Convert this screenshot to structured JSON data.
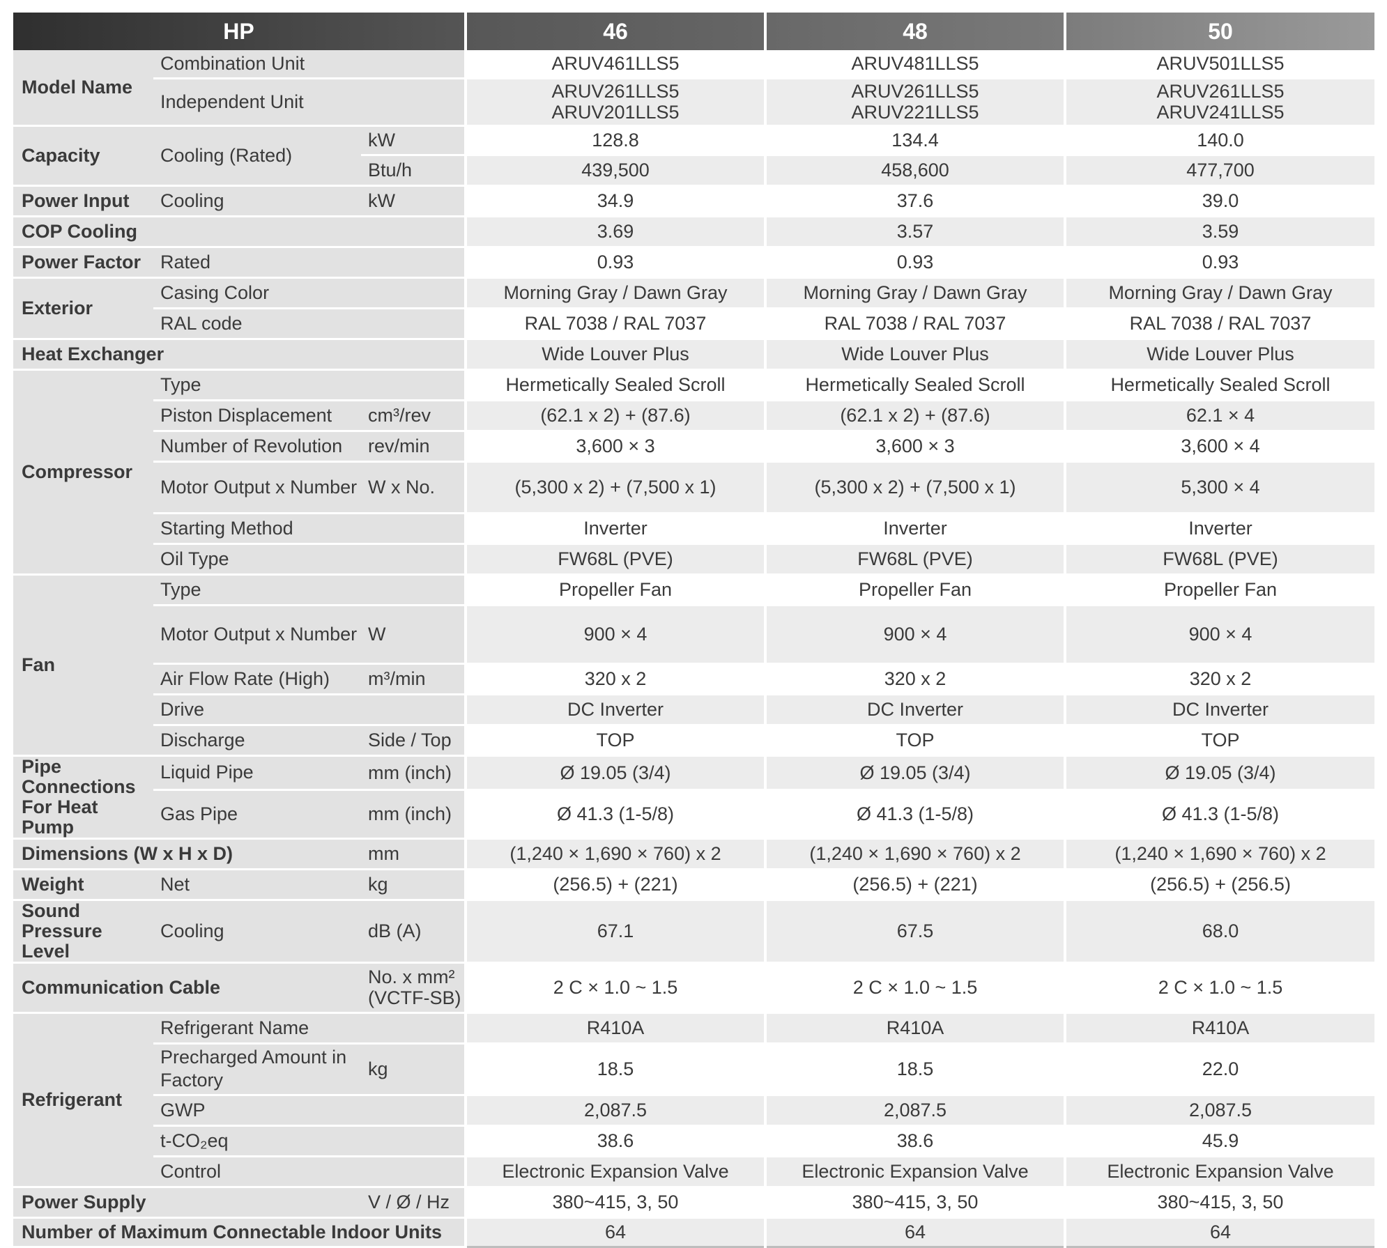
{
  "header": {
    "hp_label": "HP",
    "models": [
      "46",
      "48",
      "50"
    ]
  },
  "rows": [
    {
      "cat": "Model Name",
      "catspan": 2,
      "sub": "Combination Unit",
      "unit": "",
      "vals": [
        "ARUV461LLS5",
        "ARUV481LLS5",
        "ARUV501LLS5"
      ],
      "h": 40
    },
    {
      "sub": "Independent Unit",
      "unit": "",
      "vals": [
        "ARUV261LLS5\nARUV201LLS5",
        "ARUV261LLS5\nARUV221LLS5",
        "ARUV261LLS5\nARUV241LLS5"
      ],
      "h": 68
    },
    {
      "cat": "Capacity",
      "catspan": 2,
      "sub": "Cooling (Rated)",
      "subspan": 2,
      "unit": "kW",
      "vals": [
        "128.8",
        "134.4",
        "140.0"
      ],
      "h": 42
    },
    {
      "unit": "Btu/h",
      "vals": [
        "439,500",
        "458,600",
        "477,700"
      ],
      "h": 44
    },
    {
      "cat": "Power Input",
      "sub": "Cooling",
      "unit": "kW",
      "vals": [
        "34.9",
        "37.6",
        "39.0"
      ],
      "h": 44
    },
    {
      "cat": "COP Cooling",
      "catcols": 3,
      "vals": [
        "3.69",
        "3.57",
        "3.59"
      ],
      "h": 44
    },
    {
      "cat": "Power Factor",
      "sub": "Rated",
      "unit": "",
      "vals": [
        "0.93",
        "0.93",
        "0.93"
      ],
      "h": 44
    },
    {
      "cat": "Exterior",
      "catspan": 2,
      "sub": "Casing Color",
      "unit": "",
      "vals": [
        "Morning Gray / Dawn Gray",
        "Morning Gray / Dawn Gray",
        "Morning Gray / Dawn Gray"
      ],
      "h": 44
    },
    {
      "sub": "RAL code",
      "unit": "",
      "vals": [
        "RAL 7038 / RAL 7037",
        "RAL 7038 / RAL 7037",
        "RAL 7038 / RAL 7037"
      ],
      "h": 44
    },
    {
      "cat": "Heat Exchanger",
      "catcols": 3,
      "vals": [
        "Wide Louver Plus",
        "Wide Louver Plus",
        "Wide Louver Plus"
      ],
      "h": 44
    },
    {
      "cat": "Compressor",
      "catspan": 6,
      "sub": "Type",
      "unit": "",
      "vals": [
        "Hermetically Sealed Scroll",
        "Hermetically Sealed Scroll",
        "Hermetically Sealed Scroll"
      ],
      "h": 44
    },
    {
      "sub": "Piston Displacement",
      "unit": "cm³/rev",
      "vals": [
        "(62.1 x 2) + (87.6)",
        "(62.1 x 2) + (87.6)",
        "62.1 × 4"
      ],
      "h": 44
    },
    {
      "sub": "Number of Revolution",
      "unit": "rev/min",
      "vals": [
        "3,600 × 3",
        "3,600 × 3",
        "3,600 × 4"
      ],
      "h": 44
    },
    {
      "sub": "Motor Output x Number",
      "unit": "W x No.",
      "vals": [
        "(5,300 x 2) + (7,500 x 1)",
        "(5,300 x 2) + (7,500 x 1)",
        "5,300 × 4"
      ],
      "h": 74
    },
    {
      "sub": "Starting Method",
      "unit": "",
      "vals": [
        "Inverter",
        "Inverter",
        "Inverter"
      ],
      "h": 44
    },
    {
      "sub": "Oil Type",
      "unit": "",
      "vals": [
        "FW68L (PVE)",
        "FW68L (PVE)",
        "FW68L (PVE)"
      ],
      "h": 44
    },
    {
      "cat": "Fan",
      "catspan": 5,
      "sub": "Type",
      "unit": "",
      "vals": [
        "Propeller Fan",
        "Propeller Fan",
        "Propeller Fan"
      ],
      "h": 44
    },
    {
      "sub": "Motor Output x Number",
      "unit": "W",
      "vals": [
        "900 × 4",
        "900 × 4",
        "900 × 4"
      ],
      "h": 84
    },
    {
      "sub": "Air Flow Rate (High)",
      "unit": "m³/min",
      "vals": [
        "320 x 2",
        "320 x 2",
        "320 x 2"
      ],
      "h": 44
    },
    {
      "sub": "Drive",
      "unit": "",
      "vals": [
        "DC Inverter",
        "DC Inverter",
        "DC Inverter"
      ],
      "h": 44
    },
    {
      "sub": "Discharge",
      "unit": "Side / Top",
      "vals": [
        "TOP",
        "TOP",
        "TOP"
      ],
      "h": 44
    },
    {
      "cat": "Pipe Connections For Heat Pump",
      "catspan": 2,
      "sub": "Liquid Pipe",
      "unit": "mm (inch)",
      "vals": [
        "Ø 19.05 (3/4)",
        "Ø 19.05 (3/4)",
        "Ø 19.05 (3/4)"
      ],
      "h": 42
    },
    {
      "sub": "Gas Pipe",
      "unit": "mm (inch)",
      "vals": [
        "Ø 41.3 (1-5/8)",
        "Ø 41.3 (1-5/8)",
        "Ø 41.3 (1-5/8)"
      ],
      "h": 58
    },
    {
      "cat": "Dimensions (W x H x D)",
      "catcols": 2,
      "unit": "mm",
      "vals": [
        "(1,240 × 1,690 × 760) x 2",
        "(1,240 × 1,690 × 760) x 2",
        "(1,240 × 1,690 × 760) x 2"
      ],
      "h": 44
    },
    {
      "cat": "Weight",
      "sub": "Net",
      "unit": "kg",
      "vals": [
        "(256.5) + (221)",
        "(256.5) + (221)",
        "(256.5) + (256.5)"
      ],
      "h": 44
    },
    {
      "cat": "Sound Pressure Level",
      "sub": "Cooling",
      "unit": "dB (A)",
      "vals": [
        "67.1",
        "67.5",
        "68.0"
      ],
      "h": 70
    },
    {
      "cat": "Communication Cable",
      "catcols": 2,
      "unit": "No. x mm²\n(VCTF-SB)",
      "vals": [
        "2 C × 1.0 ~ 1.5",
        "2 C × 1.0 ~ 1.5",
        "2 C × 1.0 ~ 1.5"
      ],
      "h": 72
    },
    {
      "cat": "Refrigerant",
      "catspan": 5,
      "sub": "Refrigerant Name",
      "unit": "",
      "vals": [
        "R410A",
        "R410A",
        "R410A"
      ],
      "h": 44
    },
    {
      "sub": "Precharged Amount in Factory",
      "unit": "kg",
      "vals": [
        "18.5",
        "18.5",
        "22.0"
      ],
      "h": 74
    },
    {
      "sub": "GWP",
      "unit": "",
      "vals": [
        "2,087.5",
        "2,087.5",
        "2,087.5"
      ],
      "h": 44
    },
    {
      "sub": "t-CO₂eq",
      "unit": "",
      "vals": [
        "38.6",
        "38.6",
        "45.9"
      ],
      "h": 44
    },
    {
      "sub": "Control",
      "unit": "",
      "vals": [
        "Electronic Expansion Valve",
        "Electronic Expansion Valve",
        "Electronic Expansion Valve"
      ],
      "h": 44
    },
    {
      "cat": "Power Supply",
      "catcols": 2,
      "unit": "V / Ø / Hz",
      "vals": [
        "380~415, 3, 50",
        "380~415, 3, 50",
        "380~415, 3, 50"
      ],
      "h": 44
    },
    {
      "cat": "Number of Maximum Connectable Indoor Units",
      "catcols": 3,
      "vals": [
        "64",
        "64",
        "64"
      ],
      "h": 42
    }
  ]
}
